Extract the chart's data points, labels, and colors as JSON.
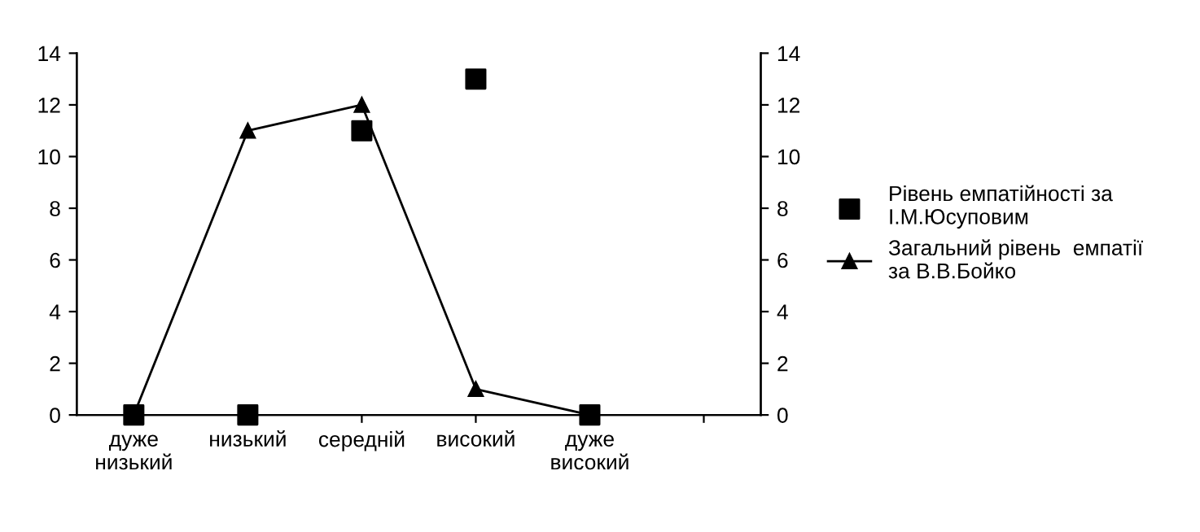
{
  "chart_data": {
    "type": "line",
    "categories": [
      "дуже\nнизький",
      "низький",
      "середній",
      "високий",
      "дуже\nвисокий",
      null
    ],
    "series": [
      {
        "name": "Рівень емпатійності за\nІ.М.Юсуповим",
        "type": "scatter",
        "marker": "square",
        "color": "#000000",
        "values": [
          0,
          0,
          11,
          13,
          0,
          null
        ]
      },
      {
        "name": "Загальний рівень  емпатії\nза В.В.Бойко",
        "marker": "triangle",
        "line_style": "solid",
        "color": "#000000",
        "values": [
          0,
          11,
          12,
          1,
          0,
          null
        ]
      }
    ],
    "ylim": [
      0,
      14
    ],
    "yticks": [
      0,
      2,
      4,
      6,
      8,
      10,
      12,
      14
    ],
    "y2lim": [
      0,
      14
    ],
    "y2ticks": [
      0,
      2,
      4,
      6,
      8,
      10,
      12,
      14
    ],
    "grid": false,
    "legend": "right"
  }
}
